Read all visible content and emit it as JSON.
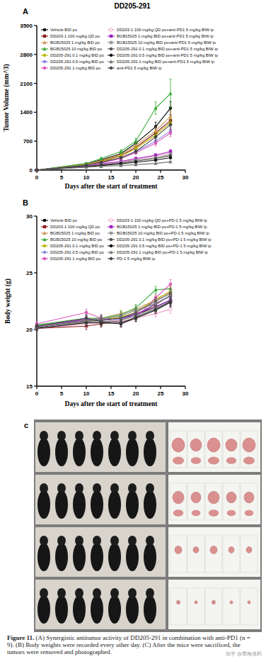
{
  "panels": [
    "A",
    "B",
    "c"
  ],
  "caption": {
    "label": "Figure 11.",
    "text": "(A) Synergistic antitumor activity of DD205-291 in combination with anti-PD1 (n = 9). (B) Body weights were recorded every other day. (C) After the mice were sacrificed, the tumors were removed and photographed."
  },
  "watermark": "知乎 @青梅煮药",
  "chart_data": [
    {
      "type": "line",
      "title": "DD205-291",
      "x_label": "Days after the start of treatment",
      "y_label": "Tumor Volume (mm^3)",
      "x": [
        0,
        10,
        13,
        17,
        20,
        24,
        27
      ],
      "xlim": [
        0,
        30
      ],
      "xticks": [
        0,
        5,
        10,
        15,
        20,
        25,
        30
      ],
      "ylim": [
        0,
        3500
      ],
      "yticks": [
        0,
        700,
        1400,
        2100,
        2800,
        3500
      ],
      "legend": "top-left",
      "series": [
        {
          "name": "Vehicle BID po",
          "color": "#000000",
          "marker": "circle",
          "values": [
            0,
            150,
            250,
            400,
            650,
            1050,
            1500
          ],
          "errors": [
            0,
            15,
            25,
            40,
            60,
            110,
            160
          ]
        },
        {
          "name": "DD203-1 100 mg/kg QD po",
          "color": "#8b1a1a",
          "marker": "square",
          "values": [
            0,
            130,
            220,
            350,
            550,
            900,
            1200
          ],
          "errors": [
            0,
            12,
            20,
            35,
            50,
            90,
            120
          ]
        },
        {
          "name": "BGB15025 1 mg/kg BID po",
          "color": "#c8965a",
          "marker": "triangle",
          "values": [
            0,
            140,
            230,
            380,
            600,
            950,
            1300
          ],
          "errors": [
            0,
            14,
            22,
            38,
            55,
            95,
            130
          ]
        },
        {
          "name": "BGB15025 10 mg/kg BID po",
          "color": "#33aa33",
          "marker": "triangle",
          "values": [
            0,
            160,
            280,
            450,
            700,
            1500,
            1850
          ],
          "errors": [
            0,
            16,
            28,
            45,
            70,
            150,
            350
          ]
        },
        {
          "name": "DD205-291 0.1 mg/kg BID po",
          "color": "#b8b800",
          "marker": "diamond",
          "values": [
            0,
            130,
            200,
            340,
            520,
            850,
            1150
          ],
          "errors": [
            0,
            12,
            20,
            34,
            50,
            85,
            115
          ]
        },
        {
          "name": "DD205-291 0.5 mg/kg BID po",
          "color": "#8888dd",
          "marker": "circle",
          "values": [
            0,
            120,
            180,
            300,
            450,
            700,
            950
          ],
          "errors": [
            0,
            12,
            18,
            30,
            45,
            70,
            95
          ]
        },
        {
          "name": "DD205-291 1 mg/kg BID po",
          "color": "#dd55bb",
          "marker": "circle",
          "values": [
            0,
            110,
            170,
            280,
            420,
            650,
            900
          ],
          "errors": [
            0,
            11,
            17,
            28,
            42,
            65,
            90
          ]
        },
        {
          "name": "DD203-1 100 mg/kg QD po+anti-PD1 5 mg/kg BIW ip",
          "color": "#f4a0c8",
          "marker": "circle-open",
          "values": [
            0,
            100,
            140,
            200,
            260,
            340,
            420
          ],
          "errors": [
            0,
            10,
            14,
            20,
            26,
            34,
            42
          ]
        },
        {
          "name": "BGB15025 1 mg/kg BID po+anti-PD1 5 mg/kg BIW ip",
          "color": "#a020c0",
          "marker": "square",
          "values": [
            0,
            100,
            150,
            210,
            280,
            360,
            450
          ],
          "errors": [
            0,
            10,
            15,
            21,
            28,
            36,
            45
          ]
        },
        {
          "name": "BGB15025 10 mg/kg BID po+anti-PD1 5 mg/kg BIW ip",
          "color": "#999999",
          "marker": "square",
          "values": [
            0,
            90,
            130,
            180,
            240,
            300,
            380
          ],
          "errors": [
            0,
            9,
            13,
            18,
            24,
            30,
            38
          ]
        },
        {
          "name": "DD205-291 0.1 mg/kg BID po+anti-PD1 5 mg/kg BIW ip",
          "color": "#555555",
          "marker": "circle",
          "values": [
            0,
            90,
            120,
            170,
            220,
            280,
            350
          ],
          "errors": [
            0,
            9,
            12,
            17,
            22,
            28,
            35
          ]
        },
        {
          "name": "DD205-291 0.5 mg/kg BID po+anti-PD1 5 mg/kg BIW ip",
          "color": "#111111",
          "marker": "circle",
          "values": [
            0,
            80,
            110,
            150,
            190,
            240,
            300
          ],
          "errors": [
            0,
            8,
            11,
            15,
            19,
            24,
            30
          ]
        },
        {
          "name": "DD205-291 1 mg/kg BID po+anti-PD1 5 mg/kg BIW ip",
          "color": "#777777",
          "marker": "triangle",
          "values": [
            0,
            70,
            90,
            110,
            130,
            160,
            200
          ],
          "errors": [
            0,
            7,
            9,
            11,
            13,
            16,
            20
          ]
        },
        {
          "name": "anti-PD1 5 mg/kg BIW ip",
          "color": "#444444",
          "marker": "diamond",
          "values": [
            0,
            120,
            190,
            300,
            450,
            800,
            1100
          ],
          "errors": [
            0,
            12,
            19,
            30,
            45,
            80,
            110
          ]
        }
      ]
    },
    {
      "type": "line",
      "x_label": "Days after the start of treatment",
      "y_label": "Body weight (g)",
      "x": [
        0,
        10,
        13,
        17,
        20,
        24,
        27
      ],
      "xlim": [
        0,
        30
      ],
      "xticks": [
        0,
        5,
        10,
        15,
        20,
        25,
        30
      ],
      "ylim": [
        15,
        30
      ],
      "yticks": [
        15,
        20,
        25,
        30
      ],
      "legend": "top-left",
      "series": [
        {
          "name": "Vehicle BID po",
          "color": "#000000",
          "marker": "circle",
          "values": [
            20.2,
            20.8,
            20.9,
            21.0,
            21.3,
            22.0,
            22.6
          ],
          "errors": [
            0.2,
            0.3,
            0.3,
            0.3,
            0.3,
            0.3,
            0.4
          ]
        },
        {
          "name": "DD203-1 100 mg/kg QD po",
          "color": "#8b1a1a",
          "marker": "square",
          "values": [
            20.1,
            20.3,
            20.5,
            20.8,
            21.3,
            22.2,
            23.0
          ],
          "errors": [
            0.2,
            0.3,
            0.3,
            0.3,
            0.3,
            0.3,
            0.4
          ]
        },
        {
          "name": "BGB15025 1 mg/kg BID po",
          "color": "#c8965a",
          "marker": "triangle",
          "values": [
            20.3,
            20.9,
            21.0,
            21.4,
            21.8,
            22.6,
            23.4
          ],
          "errors": [
            0.2,
            0.3,
            0.3,
            0.3,
            0.3,
            0.3,
            0.4
          ]
        },
        {
          "name": "BGB15025 10 mg/kg BID po",
          "color": "#33aa33",
          "marker": "triangle",
          "values": [
            20.4,
            21.0,
            21.0,
            21.3,
            21.9,
            23.5,
            23.6
          ],
          "errors": [
            0.2,
            0.3,
            0.3,
            0.3,
            0.3,
            0.3,
            0.4
          ]
        },
        {
          "name": "DD205-291 0.1 mg/kg BID po",
          "color": "#b8b800",
          "marker": "diamond",
          "values": [
            20.3,
            20.7,
            20.8,
            21.1,
            21.5,
            22.7,
            23.3
          ],
          "errors": [
            0.2,
            0.3,
            0.3,
            0.3,
            0.3,
            0.3,
            0.4
          ]
        },
        {
          "name": "DD205-291 0.5 mg/kg BID po",
          "color": "#8888dd",
          "marker": "circle",
          "values": [
            20.2,
            20.9,
            20.9,
            20.9,
            21.3,
            22.3,
            22.9
          ],
          "errors": [
            0.2,
            0.3,
            0.3,
            0.3,
            0.3,
            0.3,
            0.4
          ]
        },
        {
          "name": "DD205-291 1 mg/kg BID po",
          "color": "#dd55bb",
          "marker": "circle",
          "values": [
            20.5,
            21.5,
            21.0,
            20.6,
            21.0,
            22.8,
            24.0
          ],
          "errors": [
            0.2,
            0.3,
            0.3,
            0.3,
            0.3,
            0.3,
            0.4
          ]
        },
        {
          "name": "DD203-1 100 mg/kg QD po+PD-1 5 mg/kg BIW ip",
          "color": "#f4a0c8",
          "marker": "circle-open",
          "values": [
            20.1,
            20.5,
            20.6,
            20.7,
            21.0,
            21.4,
            21.8
          ],
          "errors": [
            0.2,
            0.3,
            0.3,
            0.3,
            0.3,
            0.3,
            0.4
          ]
        },
        {
          "name": "BGB15025 1 mg/kg BID po+PD-1 5 mg/kg BIW ip",
          "color": "#a020c0",
          "marker": "square",
          "values": [
            20.3,
            20.9,
            20.8,
            21.0,
            21.4,
            22.0,
            22.6
          ],
          "errors": [
            0.2,
            0.3,
            0.3,
            0.3,
            0.3,
            0.3,
            0.4
          ]
        },
        {
          "name": "BGB15025 10 mg/kg BID po+PD-1 5 mg/kg BIW ip",
          "color": "#999999",
          "marker": "square",
          "values": [
            20.2,
            20.8,
            20.7,
            20.8,
            21.2,
            21.9,
            22.4
          ],
          "errors": [
            0.2,
            0.3,
            0.3,
            0.3,
            0.3,
            0.3,
            0.4
          ]
        },
        {
          "name": "DD205-291 0.1 mg/kg BID po+PD-1 5 mg/kg BIW ip",
          "color": "#555555",
          "marker": "circle",
          "values": [
            20.2,
            20.7,
            20.8,
            21.0,
            21.5,
            22.5,
            23.2
          ],
          "errors": [
            0.2,
            0.3,
            0.3,
            0.3,
            0.3,
            0.3,
            0.4
          ]
        },
        {
          "name": "DD205-291 0.5 mg/kg BID po+PD-1 5 mg/kg BIW ip",
          "color": "#111111",
          "marker": "circle",
          "values": [
            20.1,
            20.6,
            20.6,
            20.5,
            21.0,
            21.7,
            22.4
          ],
          "errors": [
            0.2,
            0.3,
            0.3,
            0.3,
            0.3,
            0.3,
            0.4
          ]
        },
        {
          "name": "DD205-291 1 mg/kg BID po+PD-1 5 mg/kg BIW ip",
          "color": "#777777",
          "marker": "triangle",
          "values": [
            20.2,
            20.8,
            20.9,
            21.2,
            21.7,
            22.3,
            23.0
          ],
          "errors": [
            0.2,
            0.3,
            0.3,
            0.3,
            0.3,
            0.3,
            0.4
          ]
        },
        {
          "name": "PD-1 5 mg/kg BIW ip",
          "color": "#444444",
          "marker": "diamond",
          "values": [
            20.3,
            21.0,
            20.7,
            20.6,
            21.1,
            21.8,
            22.5
          ],
          "errors": [
            0.2,
            0.3,
            0.3,
            0.3,
            0.3,
            0.3,
            0.4
          ]
        }
      ]
    }
  ]
}
